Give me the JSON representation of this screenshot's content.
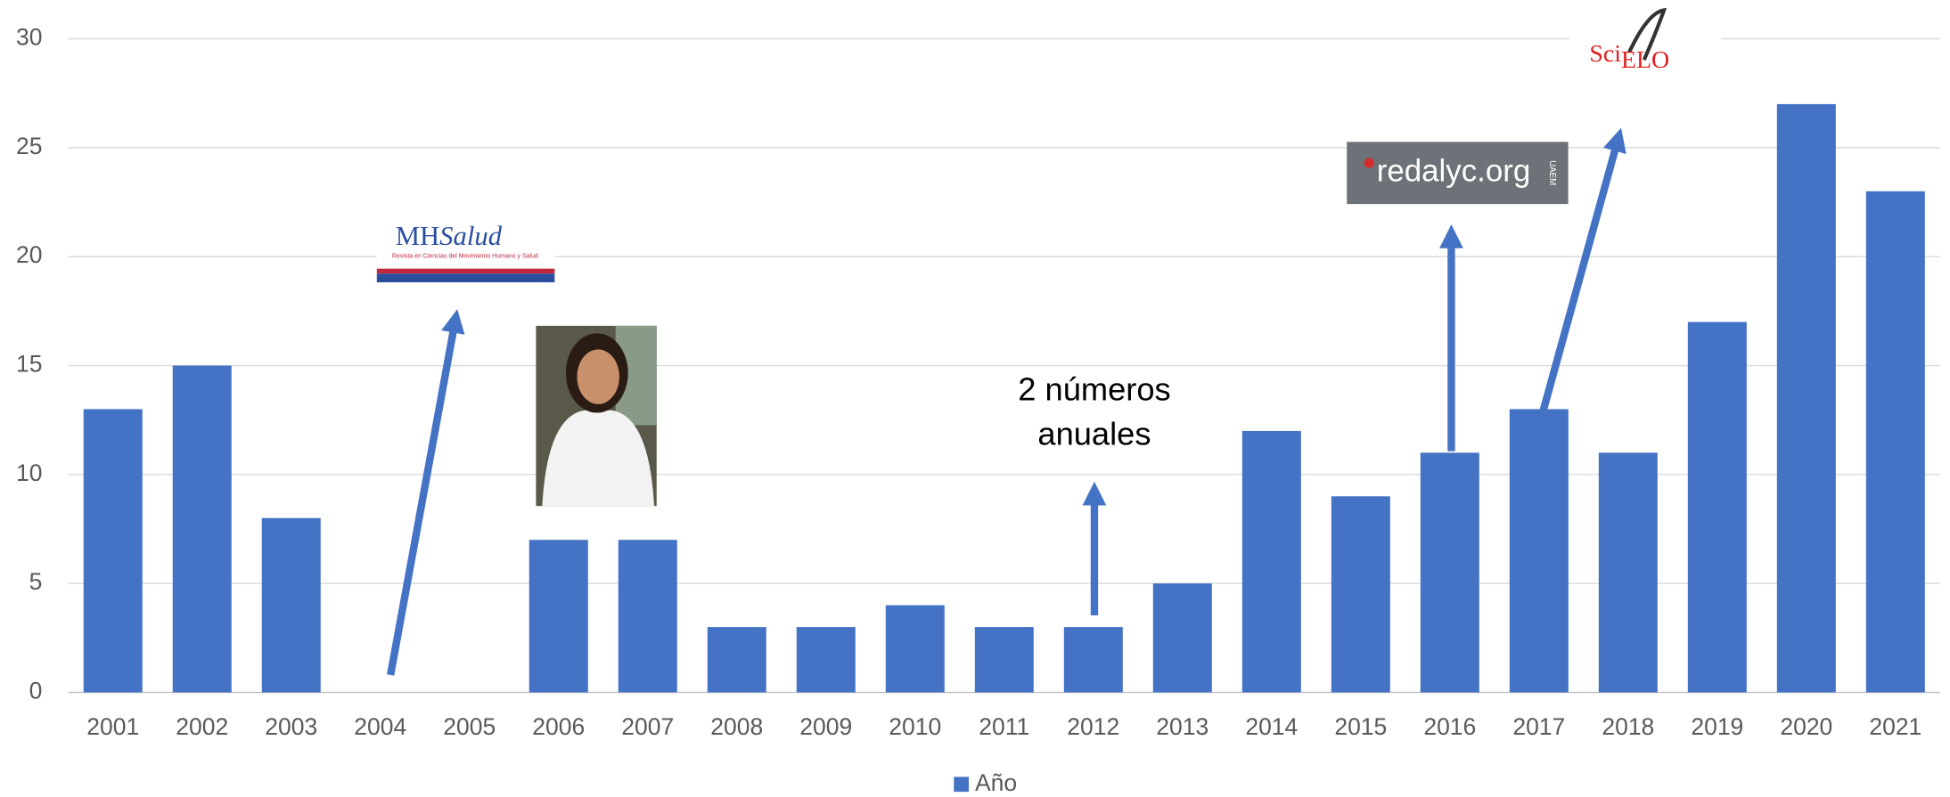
{
  "chart_data": {
    "type": "bar",
    "categories": [
      "2001",
      "2002",
      "2003",
      "2004",
      "2005",
      "2006",
      "2007",
      "2008",
      "2009",
      "2010",
      "2011",
      "2012",
      "2013",
      "2014",
      "2015",
      "2016",
      "2017",
      "2018",
      "2019",
      "2020",
      "2021"
    ],
    "series": [
      {
        "name": "Año",
        "color": "#4472c4",
        "values": [
          13,
          15,
          8,
          0,
          0,
          7,
          7,
          3,
          3,
          4,
          3,
          3,
          5,
          12,
          9,
          11,
          13,
          11,
          17,
          27,
          23
        ]
      }
    ],
    "ylim": [
      0,
      30
    ],
    "yticks": [
      0,
      5,
      10,
      15,
      20,
      25,
      30
    ],
    "grid": true,
    "legend": "bottom",
    "annotations": [
      "2 números",
      "anuales"
    ],
    "logos": {
      "mh": "MH",
      "salud": "Salud",
      "mh_subtitle": "Revista en Ciencias del Movimiento Humano y Salud",
      "redalyc": "redalyc.org",
      "uaem": "UAEM",
      "sci": "Sci",
      "elo": "ELO"
    }
  }
}
